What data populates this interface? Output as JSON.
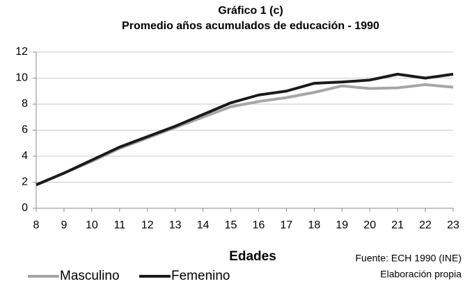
{
  "chart_data": {
    "type": "line",
    "title": "Gráfico 1 (c)",
    "subtitle": "Promedio años acumulados de educación - 1990",
    "x_label": "Edades",
    "notes": [
      "Fuente: ECH 1990 (INE)",
      "Elaboración propia"
    ],
    "x": [
      8,
      9,
      10,
      11,
      12,
      13,
      14,
      15,
      16,
      17,
      18,
      19,
      20,
      21,
      22,
      23
    ],
    "series": [
      {
        "name": "Masculino",
        "color": "#a6a6a6",
        "values": [
          1.8,
          2.7,
          3.6,
          4.6,
          5.4,
          6.2,
          7.0,
          7.8,
          8.2,
          8.5,
          8.9,
          9.4,
          9.2,
          9.25,
          9.5,
          9.3
        ]
      },
      {
        "name": "Femenino",
        "color": "#1a1a1a",
        "values": [
          1.8,
          2.7,
          3.7,
          4.7,
          5.5,
          6.3,
          7.2,
          8.1,
          8.7,
          9.0,
          9.6,
          9.7,
          9.85,
          10.3,
          10.0,
          10.3
        ]
      }
    ],
    "xlim": [
      8,
      23
    ],
    "xticks": [
      8,
      9,
      10,
      11,
      12,
      13,
      14,
      15,
      16,
      17,
      18,
      19,
      20,
      21,
      22,
      23
    ],
    "ylim": [
      0,
      12
    ],
    "yticks": [
      0,
      2,
      4,
      6,
      8,
      10,
      12
    ],
    "grid": true,
    "legend": "bottom-left"
  }
}
